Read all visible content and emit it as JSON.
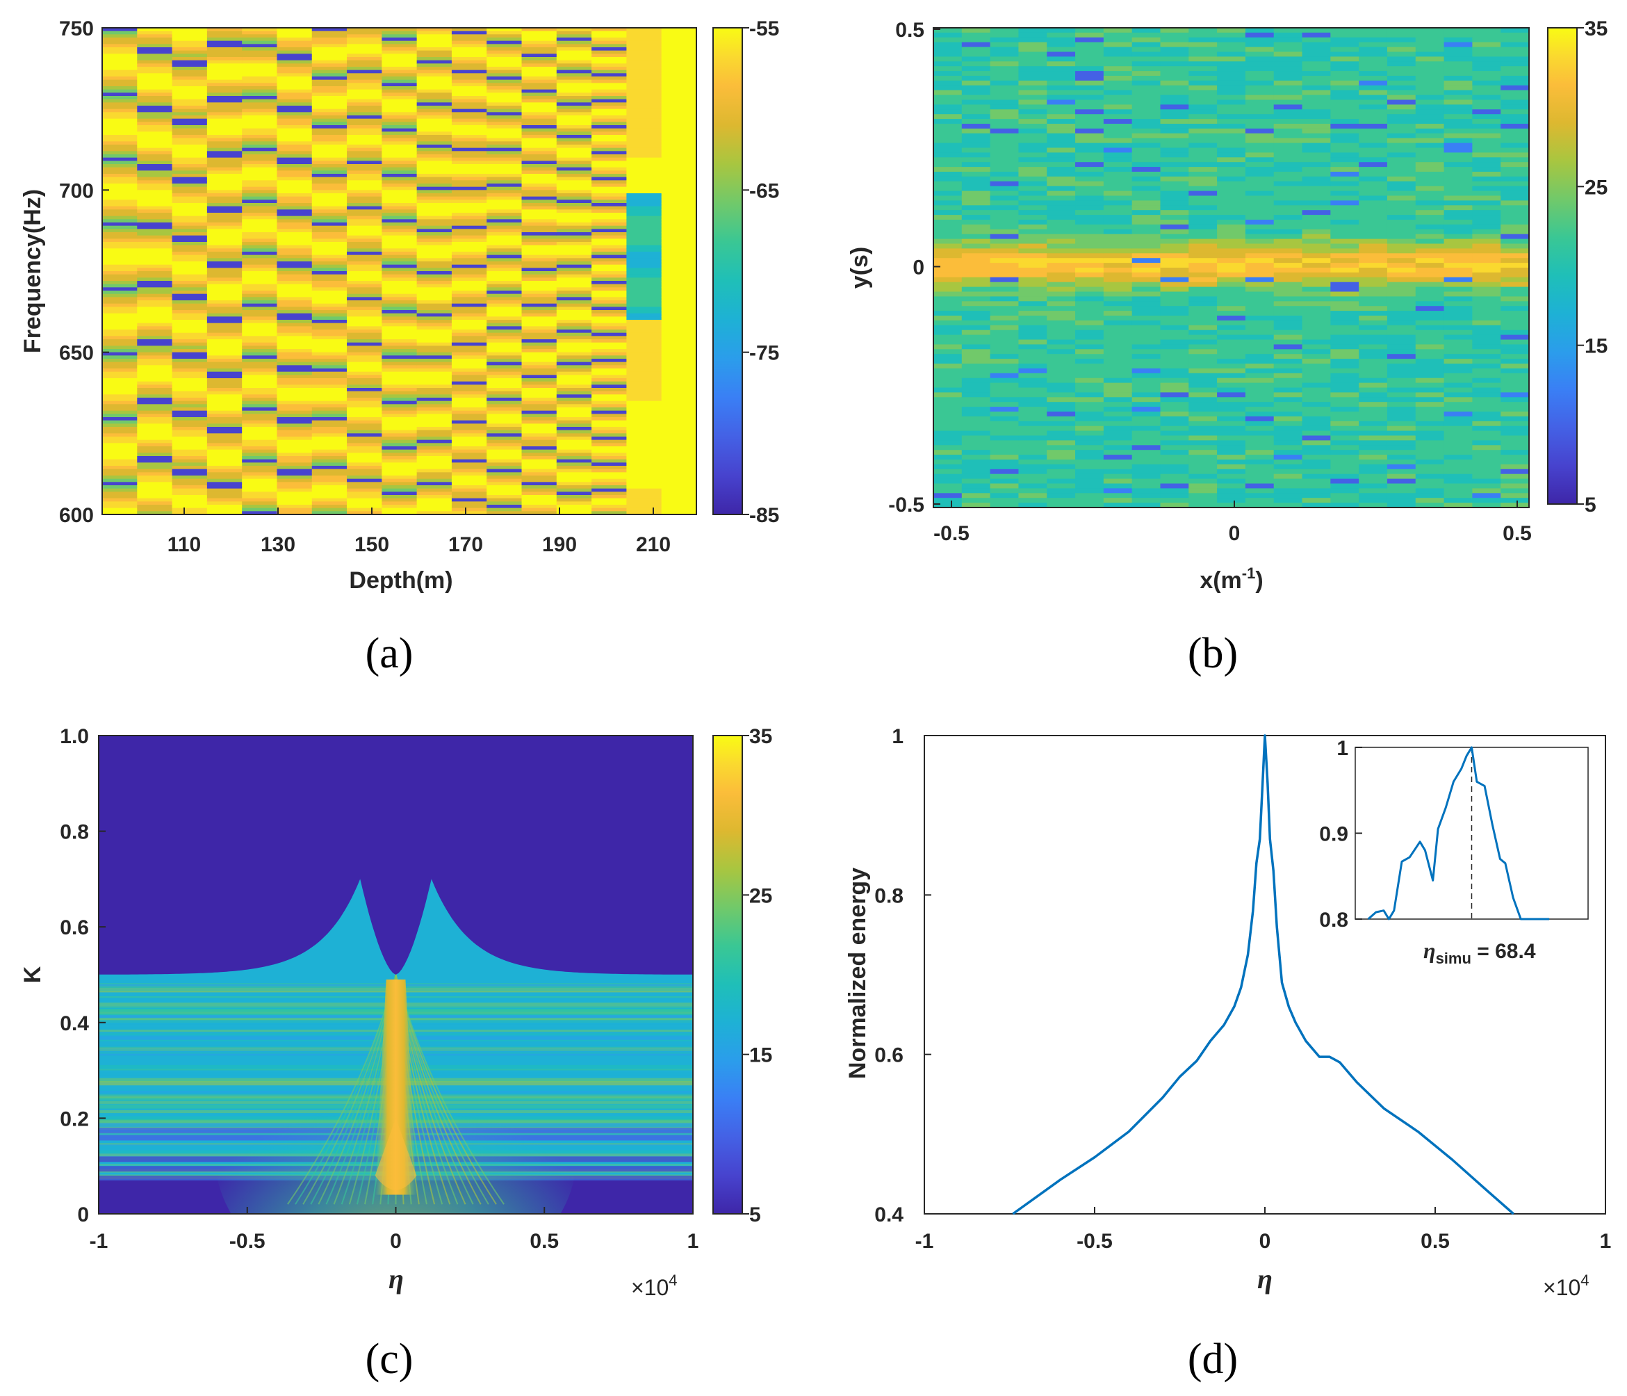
{
  "colors": {
    "parula": [
      "#3e26a8",
      "#4743ce",
      "#4461e5",
      "#3a7ff5",
      "#2b9deb",
      "#1eb1d5",
      "#1fbfb8",
      "#3ac794",
      "#71c96a",
      "#a8c640",
      "#ddb830",
      "#fbbd3a",
      "#fad92f",
      "#f9fb14"
    ],
    "line": "#0072bd",
    "axis": "#262626"
  },
  "chart_data": [
    {
      "id": "a",
      "type": "heatmap",
      "panel_label": "(a)",
      "xlabel": "Depth(m)",
      "ylabel": "Frequency(Hz)",
      "xlim": [
        94,
        220
      ],
      "ylim": [
        600,
        750
      ],
      "xticks": [
        "110",
        "130",
        "150",
        "170",
        "190",
        "210"
      ],
      "yticks": [
        "600",
        "650",
        "700",
        "750"
      ],
      "columns": 17,
      "column_period_hz": [
        20,
        18,
        18,
        17,
        16,
        16,
        15,
        14,
        14,
        13,
        12,
        11,
        11,
        10,
        8,
        0,
        0
      ],
      "colorbar": {
        "range": [
          -85,
          -55
        ],
        "ticks": [
          "-55",
          "-65",
          "-75",
          "-85"
        ]
      }
    },
    {
      "id": "b",
      "type": "heatmap",
      "panel_label": "(b)",
      "xlabel_main": "x(m",
      "xlabel_sup": "-1",
      "xlabel_close": ")",
      "ylabel": "y(s)",
      "xlim": [
        -0.52,
        0.52
      ],
      "ylim": [
        -0.5,
        0.5
      ],
      "xticks": [
        "-0.5",
        "0",
        "0.5"
      ],
      "yticks": [
        "-0.5",
        "0",
        "0.5"
      ],
      "colorbar": {
        "range": [
          5,
          35
        ],
        "ticks": [
          "35",
          "25",
          "15",
          "5"
        ]
      }
    },
    {
      "id": "c",
      "type": "heatmap",
      "panel_label": "(c)",
      "xlabel": "η",
      "ylabel": "K",
      "xlim": [
        -10000,
        10000
      ],
      "ylim": [
        0,
        1.0
      ],
      "xticks": [
        "-1",
        "-0.5",
        "0",
        "0.5",
        "1"
      ],
      "yticks": [
        "0",
        "0.2",
        "0.4",
        "0.6",
        "0.8",
        "1.0"
      ],
      "x_multiplier_base": "×10",
      "x_multiplier_exp": "4",
      "boundary": {
        "plateau_K": 0.5,
        "peak_K": 0.7,
        "peak_eta": [
          -1200,
          1200
        ],
        "center_K": 0.5
      },
      "colorbar": {
        "range": [
          5,
          35
        ],
        "ticks": [
          "35",
          "25",
          "15",
          "5"
        ]
      }
    },
    {
      "id": "d",
      "type": "line",
      "panel_label": "(d)",
      "xlabel": "η",
      "ylabel": "Normalized energy",
      "xlim": [
        -10000,
        10000
      ],
      "ylim": [
        0.4,
        1.0
      ],
      "xticks": [
        "-1",
        "-0.5",
        "0",
        "0.5",
        "1"
      ],
      "yticks": [
        "0.4",
        "0.6",
        "0.8",
        "1"
      ],
      "x_multiplier_base": "×10",
      "x_multiplier_exp": "4",
      "series": [
        {
          "name": "Normalized energy",
          "x": [
            -7400,
            -6000,
            -5000,
            -4000,
            -3000,
            -2500,
            -2000,
            -1600,
            -1200,
            -900,
            -700,
            -500,
            -350,
            -250,
            -150,
            -80,
            0,
            80,
            150,
            250,
            350,
            500,
            700,
            900,
            1200,
            1600,
            1900,
            2200,
            2700,
            3500,
            4500,
            5500,
            6500,
            7300
          ],
          "y": [
            0.4,
            0.443,
            0.471,
            0.503,
            0.546,
            0.572,
            0.592,
            0.617,
            0.637,
            0.66,
            0.684,
            0.725,
            0.78,
            0.84,
            0.87,
            0.93,
            1.0,
            0.94,
            0.87,
            0.83,
            0.76,
            0.69,
            0.66,
            0.64,
            0.617,
            0.597,
            0.597,
            0.59,
            0.565,
            0.532,
            0.503,
            0.468,
            0.43,
            0.4
          ]
        }
      ],
      "inset": {
        "ylim": [
          0.8,
          1.0
        ],
        "yticks": [
          "0.8",
          "0.9",
          "1"
        ],
        "annotation_main": "η",
        "annotation_sub": "simu",
        "annotation_value": " = 68.4",
        "peak_x": 68.4,
        "x": [
          -40,
          -37,
          -34,
          -32,
          -30,
          -27,
          -24,
          -20,
          -18,
          -15,
          -13,
          -10,
          -7,
          -4,
          -2,
          0,
          2,
          5,
          8,
          11,
          13,
          16,
          19,
          21,
          24,
          27,
          30
        ],
        "y": [
          0.8,
          0.808,
          0.81,
          0.8,
          0.81,
          0.867,
          0.872,
          0.89,
          0.88,
          0.845,
          0.905,
          0.93,
          0.96,
          0.975,
          0.99,
          1.0,
          0.96,
          0.955,
          0.91,
          0.87,
          0.865,
          0.825,
          0.8,
          0.8,
          0.8,
          0.8,
          0.8
        ]
      }
    }
  ]
}
